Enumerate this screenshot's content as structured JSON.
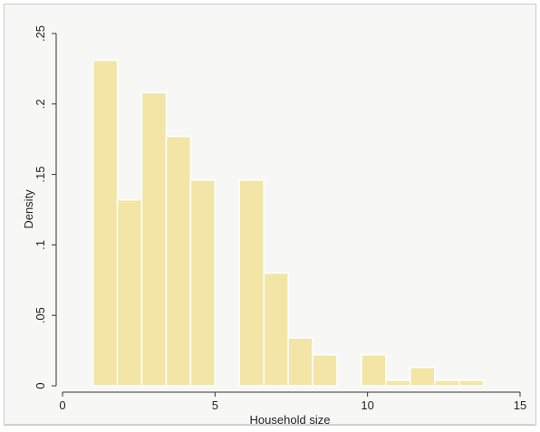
{
  "chart_data": {
    "type": "bar",
    "histogram": true,
    "xlabel": "Household size",
    "ylabel": "Density",
    "xlim": [
      0,
      15
    ],
    "ylim": [
      0,
      0.25
    ],
    "x_ticks": [
      0,
      5,
      10,
      15
    ],
    "x_tick_labels": [
      "0",
      "5",
      "10",
      "15"
    ],
    "y_ticks": [
      0,
      0.05,
      0.1,
      0.15,
      0.2,
      0.25
    ],
    "y_tick_labels": [
      "0",
      ".05",
      ".1",
      ".15",
      ".2",
      ".25"
    ],
    "grid": false,
    "legend": "none",
    "bar_color": "#f3e5a6",
    "bar_edge_color": "#ffffff",
    "bins": [
      {
        "start": 1.0,
        "end": 1.8,
        "value": 0.231
      },
      {
        "start": 1.8,
        "end": 2.6,
        "value": 0.132
      },
      {
        "start": 2.6,
        "end": 3.4,
        "value": 0.208
      },
      {
        "start": 3.4,
        "end": 4.2,
        "value": 0.177
      },
      {
        "start": 4.2,
        "end": 5.0,
        "value": 0.146
      },
      {
        "start": 5.0,
        "end": 5.8,
        "value": 0.0
      },
      {
        "start": 5.8,
        "end": 6.6,
        "value": 0.146
      },
      {
        "start": 6.6,
        "end": 7.4,
        "value": 0.08
      },
      {
        "start": 7.4,
        "end": 8.2,
        "value": 0.034
      },
      {
        "start": 8.2,
        "end": 9.0,
        "value": 0.022
      },
      {
        "start": 9.0,
        "end": 9.8,
        "value": 0.0
      },
      {
        "start": 9.8,
        "end": 10.6,
        "value": 0.022
      },
      {
        "start": 10.6,
        "end": 11.4,
        "value": 0.004
      },
      {
        "start": 11.4,
        "end": 12.2,
        "value": 0.013
      },
      {
        "start": 12.2,
        "end": 13.0,
        "value": 0.004
      },
      {
        "start": 13.0,
        "end": 13.8,
        "value": 0.004
      }
    ]
  }
}
